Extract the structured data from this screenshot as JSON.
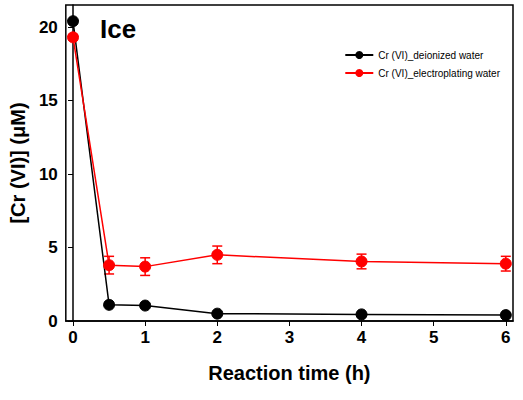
{
  "chart_data": {
    "type": "line",
    "annotation": "Ice",
    "x_label": "Reaction time (h)",
    "y_label": "[Cr (VI)] (μM)",
    "x": [
      0,
      0.5,
      1,
      2,
      4,
      6
    ],
    "series": [
      {
        "name": "Cr (VI)_deionized water",
        "color": "#000000",
        "marker": "circle",
        "values": [
          20.4,
          1.1,
          1.05,
          0.5,
          0.45,
          0.4
        ],
        "errors": [
          0.1,
          0.1,
          0.15,
          0.1,
          0.05,
          0.05
        ]
      },
      {
        "name": "Cr (VI)_electroplating water",
        "color": "#ff0000",
        "marker": "circle",
        "values": [
          19.3,
          3.8,
          3.7,
          4.5,
          4.05,
          3.9
        ],
        "errors": [
          0.2,
          0.6,
          0.6,
          0.6,
          0.5,
          0.5
        ]
      }
    ],
    "xlim": [
      -0.1,
      6.1
    ],
    "xticks": [
      0,
      1,
      2,
      3,
      4,
      5,
      6
    ],
    "ylim": [
      0,
      21.5
    ],
    "yticks": [
      0,
      5,
      10,
      15,
      20
    ],
    "grid": false,
    "legend": "top-right"
  }
}
